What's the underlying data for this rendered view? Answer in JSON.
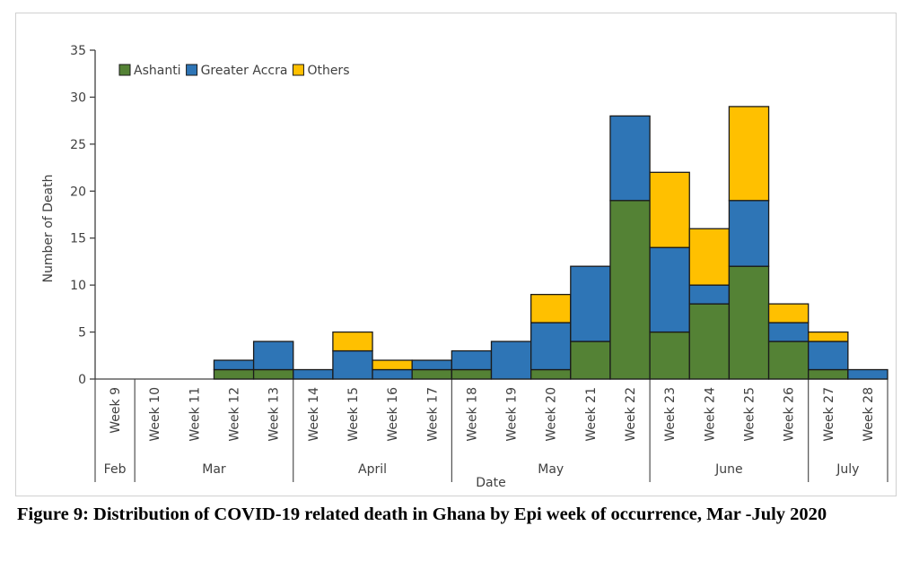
{
  "caption": "Figure 9: Distribution of COVID-19 related death in Ghana by Epi week of occurrence, Mar -July 2020",
  "chart_data": {
    "type": "bar",
    "stacked": true,
    "title": "Figure 9: Distribution of COVID-19 related death in Ghana by Epi week of occurrence, Mar -July 2020",
    "xlabel": "Date",
    "ylabel": "Number of Death",
    "ylim": [
      0,
      35
    ],
    "yticks": [
      0,
      5,
      10,
      15,
      20,
      25,
      30,
      35
    ],
    "grid": false,
    "legend_position": "top-left",
    "categories": [
      "Week 9",
      "Week 10",
      "Week 11",
      "Week 12",
      "Week 13",
      "Week 14",
      "Week 15",
      "Week 16",
      "Week 17",
      "Week 18",
      "Week 19",
      "Week 20",
      "Week 21",
      "Week 22",
      "Week 23",
      "Week 24",
      "Week 25",
      "Week 26",
      "Week 27",
      "Week 28"
    ],
    "months": [
      {
        "name": "Feb",
        "start": 0,
        "end": 0
      },
      {
        "name": "Mar",
        "start": 1,
        "end": 4
      },
      {
        "name": "April",
        "start": 5,
        "end": 8
      },
      {
        "name": "May",
        "start": 9,
        "end": 13
      },
      {
        "name": "June",
        "start": 14,
        "end": 17
      },
      {
        "name": "July",
        "start": 18,
        "end": 19
      }
    ],
    "series": [
      {
        "name": "Ashanti",
        "color": "#548235",
        "values": [
          0,
          0,
          0,
          1,
          1,
          0,
          0,
          0,
          1,
          1,
          0,
          1,
          4,
          19,
          5,
          8,
          12,
          4,
          1,
          0
        ]
      },
      {
        "name": "Greater Accra",
        "color": "#2e75b6",
        "values": [
          0,
          0,
          0,
          1,
          3,
          1,
          3,
          1,
          1,
          2,
          4,
          5,
          8,
          9,
          9,
          2,
          7,
          2,
          3,
          1
        ]
      },
      {
        "name": "Others",
        "color": "#ffc000",
        "values": [
          0,
          0,
          0,
          0,
          0,
          0,
          2,
          1,
          0,
          0,
          0,
          3,
          0,
          0,
          8,
          6,
          10,
          2,
          1,
          0
        ]
      }
    ]
  }
}
